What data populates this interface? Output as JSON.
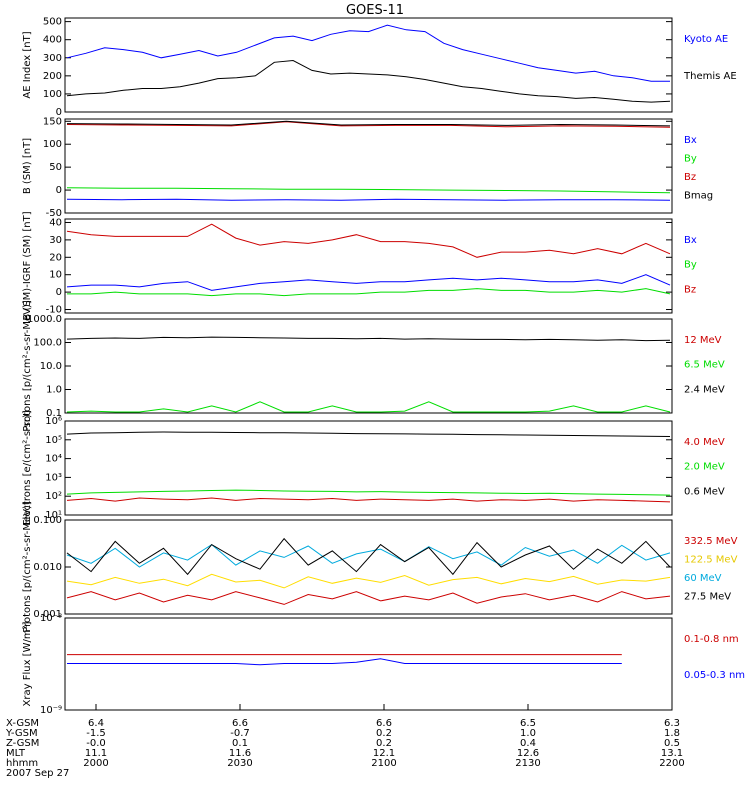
{
  "title": "GOES-11",
  "chart_data": [
    {
      "type": "line",
      "ylabel": "AE Index [nT]",
      "ylim": [
        0,
        520
      ],
      "yticks": [
        "0",
        "100",
        "200",
        "300",
        "400",
        "500"
      ],
      "ytick_values": [
        0,
        100,
        200,
        300,
        400,
        500
      ],
      "series": [
        {
          "name": "Kyoto AE",
          "color": "#0000ff",
          "values": [
            300,
            325,
            355,
            345,
            330,
            300,
            320,
            340,
            310,
            330,
            370,
            410,
            420,
            395,
            430,
            450,
            445,
            480,
            455,
            445,
            380,
            345,
            320,
            295,
            270,
            245,
            230,
            215,
            225,
            200,
            190,
            170,
            170
          ]
        },
        {
          "name": "Themis AE",
          "color": "#000000",
          "values": [
            90,
            100,
            105,
            120,
            130,
            130,
            140,
            160,
            185,
            190,
            200,
            275,
            285,
            230,
            210,
            215,
            210,
            205,
            195,
            180,
            160,
            140,
            130,
            115,
            100,
            90,
            85,
            75,
            80,
            70,
            60,
            55,
            60
          ]
        }
      ]
    },
    {
      "type": "line",
      "ylabel": "B (SM) [nT]",
      "ylim": [
        -50,
        155
      ],
      "yticks": [
        "-50",
        "0",
        "50",
        "100",
        "150"
      ],
      "ytick_values": [
        -50,
        0,
        50,
        100,
        150
      ],
      "series": [
        {
          "name": "Bx",
          "color": "#0000ff",
          "values": [
            -20,
            -21,
            -20,
            -22,
            -21,
            -22,
            -20,
            -21,
            -22,
            -21,
            -21,
            -22
          ]
        },
        {
          "name": "By",
          "color": "#00dd00",
          "values": [
            5,
            4,
            4,
            3,
            2,
            2,
            1,
            0,
            -1,
            -2,
            -4,
            -6
          ]
        },
        {
          "name": "Bz",
          "color": "#cc0000",
          "values": [
            143,
            142,
            141,
            140,
            149,
            140,
            141,
            141,
            138,
            140,
            139,
            137
          ]
        },
        {
          "name": "Bmag",
          "color": "#000000",
          "values": [
            145,
            144,
            143,
            142,
            150,
            142,
            143,
            143,
            141,
            143,
            142,
            140
          ]
        }
      ]
    },
    {
      "type": "line",
      "ylabel": "B (SM)-IGRF (SM) [nT]",
      "ylim": [
        -12,
        42
      ],
      "yticks": [
        "-10",
        "0",
        "10",
        "20",
        "30",
        "40"
      ],
      "ytick_values": [
        -10,
        0,
        10,
        20,
        30,
        40
      ],
      "series": [
        {
          "name": "Bx",
          "color": "#0000ff",
          "values": [
            3,
            4,
            4,
            3,
            5,
            6,
            1,
            3,
            5,
            6,
            7,
            6,
            5,
            6,
            6,
            7,
            8,
            7,
            8,
            7,
            6,
            6,
            7,
            5,
            10,
            4
          ]
        },
        {
          "name": "By",
          "color": "#00dd00",
          "values": [
            -1,
            -1,
            0,
            -1,
            -1,
            -1,
            -2,
            -1,
            -1,
            -2,
            -1,
            -1,
            -1,
            0,
            0,
            1,
            1,
            2,
            1,
            1,
            0,
            0,
            1,
            0,
            2,
            -1
          ]
        },
        {
          "name": "Bz",
          "color": "#cc0000",
          "values": [
            35,
            33,
            32,
            32,
            32,
            32,
            39,
            31,
            27,
            29,
            28,
            30,
            33,
            29,
            29,
            28,
            26,
            20,
            23,
            23,
            24,
            22,
            25,
            22,
            28,
            22
          ]
        }
      ]
    },
    {
      "type": "line",
      "ylabel": "Protons [p/(cm²-s-sr-MeV)]",
      "ylim": [
        0.1,
        1000
      ],
      "log": true,
      "yticks": [
        "0.1",
        "1.0",
        "10.0",
        "100.0",
        "1000.0"
      ],
      "ytick_values": [
        0.1,
        1,
        10,
        100,
        1000
      ],
      "series": [
        {
          "name": "12 MeV",
          "color": "#cc0000",
          "values": []
        },
        {
          "name": "6.5 MeV",
          "color": "#00dd00",
          "values": [
            0.1,
            0.12,
            0.1,
            0.1,
            0.15,
            0.1,
            0.2,
            0.1,
            0.3,
            0.1,
            0.1,
            0.2,
            0.1,
            0.1,
            0.12,
            0.3,
            0.1,
            0.1,
            0.1,
            0.1,
            0.12,
            0.2,
            0.1,
            0.1,
            0.2,
            0.1
          ]
        },
        {
          "name": "2.4 MeV",
          "color": "#000000",
          "values": [
            140,
            150,
            155,
            150,
            165,
            160,
            170,
            165,
            160,
            155,
            150,
            150,
            145,
            150,
            140,
            145,
            140,
            135,
            135,
            130,
            135,
            130,
            125,
            130,
            120,
            125
          ]
        }
      ]
    },
    {
      "type": "line",
      "ylabel": "Electrons [e/(cm²-s-sr)]",
      "ylim": [
        10,
        1000000
      ],
      "log": true,
      "yticks": [
        "10¹",
        "10²",
        "10³",
        "10⁴",
        "10⁵",
        "10⁶"
      ],
      "ytick_values": [
        10,
        100,
        1000,
        10000,
        100000,
        1000000
      ],
      "series": [
        {
          "name": "4.0 MeV",
          "color": "#cc0000",
          "values": [
            60,
            75,
            55,
            80,
            70,
            65,
            80,
            60,
            75,
            70,
            65,
            75,
            60,
            70,
            65,
            60,
            70,
            55,
            65,
            60,
            70,
            55,
            65,
            60,
            55,
            50
          ]
        },
        {
          "name": "2.0 MeV",
          "color": "#00dd00",
          "values": [
            130,
            150,
            160,
            170,
            180,
            190,
            200,
            210,
            200,
            190,
            185,
            180,
            170,
            175,
            165,
            160,
            155,
            150,
            145,
            140,
            145,
            135,
            130,
            125,
            120,
            115
          ]
        },
        {
          "name": "0.6 MeV",
          "color": "#000000",
          "values": [
            200000,
            230000,
            240000,
            250000,
            260000,
            255000,
            250000,
            245000,
            240000,
            235000,
            230000,
            225000,
            215000,
            210000,
            205000,
            200000,
            195000,
            190000,
            185000,
            180000,
            175000,
            170000,
            165000,
            160000,
            155000,
            150000
          ]
        }
      ]
    },
    {
      "type": "line",
      "ylabel": "Protons [p/(cm²-s-sr-MeV)]",
      "ylim": [
        0.001,
        0.1
      ],
      "log": true,
      "yticks": [
        "0.001",
        "0.010",
        "0.100"
      ],
      "ytick_values": [
        0.001,
        0.01,
        0.1
      ],
      "series": [
        {
          "name": "332.5 MeV",
          "color": "#cc0000",
          "values": [
            0.0022,
            0.003,
            0.002,
            0.0028,
            0.0018,
            0.0025,
            0.002,
            0.003,
            0.0022,
            0.0016,
            0.0026,
            0.0021,
            0.003,
            0.0019,
            0.0024,
            0.002,
            0.0028,
            0.0017,
            0.0023,
            0.0027,
            0.002,
            0.0025,
            0.0018,
            0.003,
            0.0021,
            0.0024
          ]
        },
        {
          "name": "122.5 MeV",
          "color": "#ffdd00",
          "values": [
            0.005,
            0.0042,
            0.006,
            0.0045,
            0.0055,
            0.004,
            0.007,
            0.0048,
            0.0052,
            0.0036,
            0.0062,
            0.0045,
            0.0058,
            0.0047,
            0.0066,
            0.0041,
            0.0054,
            0.006,
            0.0044,
            0.0057,
            0.0049,
            0.0063,
            0.0043,
            0.0053,
            0.005,
            0.006
          ]
        },
        {
          "name": "60 MeV",
          "color": "#00aadd",
          "values": [
            0.018,
            0.012,
            0.025,
            0.01,
            0.02,
            0.014,
            0.03,
            0.011,
            0.022,
            0.016,
            0.028,
            0.012,
            0.019,
            0.024,
            0.013,
            0.027,
            0.015,
            0.021,
            0.011,
            0.026,
            0.017,
            0.023,
            0.012,
            0.029,
            0.014,
            0.02
          ]
        },
        {
          "name": "27.5 MeV",
          "color": "#000000",
          "values": [
            0.02,
            0.008,
            0.035,
            0.012,
            0.025,
            0.007,
            0.03,
            0.015,
            0.009,
            0.04,
            0.011,
            0.022,
            0.008,
            0.03,
            0.013,
            0.026,
            0.007,
            0.033,
            0.01,
            0.018,
            0.028,
            0.009,
            0.024,
            0.012,
            0.035,
            0.01
          ]
        }
      ]
    },
    {
      "type": "line",
      "ylabel": "Xray Flux [W/m²]",
      "ylim": [
        1e-09,
        1e-08
      ],
      "log": true,
      "yticks": [
        "10⁻⁹",
        "10⁻⁸"
      ],
      "ytick_values": [
        1e-09,
        1e-08
      ],
      "series": [
        {
          "name": "0.1-0.8 nm",
          "color": "#cc0000",
          "values": [
            4e-09,
            4e-09,
            4e-09,
            4e-09,
            4e-09,
            4e-09,
            4e-09,
            4e-09,
            4e-09,
            4e-09,
            4e-09,
            4e-09,
            4e-09,
            4e-09,
            4e-09,
            4e-09,
            4e-09,
            4e-09,
            4e-09,
            4e-09,
            4e-09,
            4e-09,
            4e-09,
            4e-09,
            null,
            4e-09
          ]
        },
        {
          "name": "0.05-0.3 nm",
          "color": "#0000ff",
          "values": [
            3.2e-09,
            3.2e-09,
            3.2e-09,
            3.2e-09,
            3.2e-09,
            3.2e-09,
            3.2e-09,
            3.2e-09,
            3.1e-09,
            3.2e-09,
            3.2e-09,
            3.2e-09,
            3.3e-09,
            3.6e-09,
            3.2e-09,
            3.2e-09,
            3.2e-09,
            3.2e-09,
            3.2e-09,
            3.2e-09,
            3.2e-09,
            3.2e-09,
            3.2e-09,
            3.2e-09,
            null,
            3.2e-09
          ]
        }
      ]
    }
  ],
  "xaxis": {
    "date": "2007 Sep 27",
    "rows": [
      {
        "label": "X-GSM",
        "values": [
          "6.4",
          "6.6",
          "6.6",
          "6.5",
          "6.3"
        ]
      },
      {
        "label": "Y-GSM",
        "values": [
          "-1.5",
          "-0.7",
          "0.2",
          "1.0",
          "1.8"
        ]
      },
      {
        "label": "Z-GSM",
        "values": [
          "-0.0",
          "0.1",
          "0.2",
          "0.4",
          "0.5"
        ]
      },
      {
        "label": "MLT",
        "values": [
          "11.1",
          "11.6",
          "12.1",
          "12.6",
          "13.1"
        ]
      },
      {
        "label": "hhmm",
        "values": [
          "2000",
          "2030",
          "2100",
          "2130",
          "2200"
        ]
      }
    ]
  }
}
